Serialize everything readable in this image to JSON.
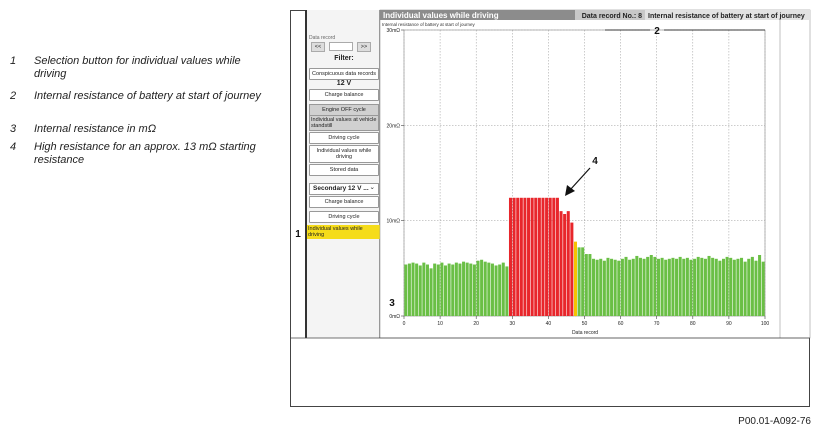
{
  "notes": [
    {
      "number": "1",
      "text": "Selection button for individual values while driving"
    },
    {
      "number": "2",
      "text": "Internal resistance of battery at start of journey"
    },
    {
      "number": "3",
      "text": "Internal resistance in mΩ"
    },
    {
      "number": "4",
      "text": "High resistance for an approx. 13 mΩ starting resistance"
    }
  ],
  "sidebar": {
    "data_record_label": "Data record",
    "prev": "<<",
    "next": ">>",
    "items": [
      {
        "text": "Filter:",
        "style": "heading"
      },
      {
        "text": "Conspicuous data records",
        "style": "button"
      },
      {
        "text": "12 V",
        "style": "heading"
      },
      {
        "text": "Charge balance",
        "style": "button"
      },
      {
        "text": "Engine OFF cycle",
        "style": "gray"
      },
      {
        "text": "Individual values at vehicle standstill",
        "style": "gray2"
      },
      {
        "text": "Driving cycle",
        "style": "button"
      },
      {
        "text": "Individual values while driving",
        "style": "button"
      },
      {
        "text": "Stored data",
        "style": "button"
      },
      {
        "text": "Secondary 12 V ...",
        "style": "dropdown"
      },
      {
        "text": "Charge balance",
        "style": "button"
      },
      {
        "text": "Driving cycle",
        "style": "button"
      },
      {
        "text": "Individual values while driving",
        "style": "highlight"
      }
    ]
  },
  "chart_data": {
    "type": "bar",
    "title": "Individual values while driving",
    "record_label": "Data record No.: 8",
    "header_subject": "Internal resistance of battery at start of journey",
    "subtitle": "Internal resistance of battery at start of journey",
    "x_label": "Data record",
    "xlim": [
      0,
      100
    ],
    "xticks": [
      0,
      10,
      20,
      30,
      40,
      50,
      60,
      70,
      80,
      90,
      100
    ],
    "ylim": [
      0,
      30
    ],
    "yticks": [
      {
        "value": 0,
        "label": "0mΩ"
      },
      {
        "value": 10,
        "label": "10mΩ"
      },
      {
        "value": 20,
        "label": "20mΩ"
      },
      {
        "value": 30,
        "label": "30mΩ"
      }
    ],
    "grid": true,
    "series": [
      {
        "color": "#6abf45",
        "x": [
          1,
          2,
          3,
          4,
          5,
          6,
          7,
          8,
          9,
          10,
          11,
          12,
          13,
          14,
          15,
          16,
          17,
          18,
          19,
          20,
          21,
          22,
          23,
          24,
          25,
          26,
          27,
          28,
          29,
          49,
          50,
          51,
          52,
          53,
          54,
          55,
          56,
          57,
          58,
          59,
          60,
          61,
          62,
          63,
          64,
          65,
          66,
          67,
          68,
          69,
          70,
          71,
          72,
          73,
          74,
          75,
          76,
          77,
          78,
          79,
          80,
          81,
          82,
          83,
          84,
          85,
          86,
          87,
          88,
          89,
          90,
          91,
          92,
          93,
          94,
          95,
          96,
          97,
          98,
          99,
          100
        ],
        "values": [
          5.4,
          5.5,
          5.6,
          5.5,
          5.3,
          5.6,
          5.4,
          5.0,
          5.5,
          5.4,
          5.6,
          5.3,
          5.5,
          5.4,
          5.6,
          5.5,
          5.7,
          5.6,
          5.5,
          5.4,
          5.8,
          5.9,
          5.7,
          5.6,
          5.5,
          5.3,
          5.4,
          5.6,
          5.2,
          7.2,
          7.2,
          6.5,
          6.5,
          6.0,
          5.9,
          6.0,
          5.8,
          6.1,
          6.0,
          5.9,
          5.8,
          6.0,
          6.2,
          5.9,
          6.0,
          6.3,
          6.1,
          6.0,
          6.2,
          6.4,
          6.2,
          6.0,
          6.1,
          5.9,
          6.0,
          6.1,
          6.0,
          6.2,
          6.0,
          6.1,
          5.9,
          6.0,
          6.2,
          6.1,
          6.0,
          6.3,
          6.1,
          6.0,
          5.8,
          6.0,
          6.2,
          6.1,
          5.9,
          6.0,
          6.1,
          5.7,
          6.0,
          6.2,
          5.8,
          6.4,
          5.7
        ]
      },
      {
        "color": "#e8262b",
        "x": [
          30,
          31,
          32,
          33,
          34,
          35,
          36,
          37,
          38,
          39,
          40,
          41,
          42,
          43,
          44,
          45,
          46,
          47
        ],
        "values": [
          12.4,
          12.4,
          12.4,
          12.4,
          12.4,
          12.4,
          12.4,
          12.4,
          12.4,
          12.4,
          12.4,
          12.4,
          12.4,
          12.4,
          11.0,
          10.7,
          11.0,
          9.8
        ]
      },
      {
        "color": "#f5c400",
        "x": [
          48
        ],
        "values": [
          7.8
        ]
      }
    ],
    "callouts": [
      "1",
      "2",
      "3",
      "4"
    ]
  },
  "figure_id": "P00.01-A092-76"
}
